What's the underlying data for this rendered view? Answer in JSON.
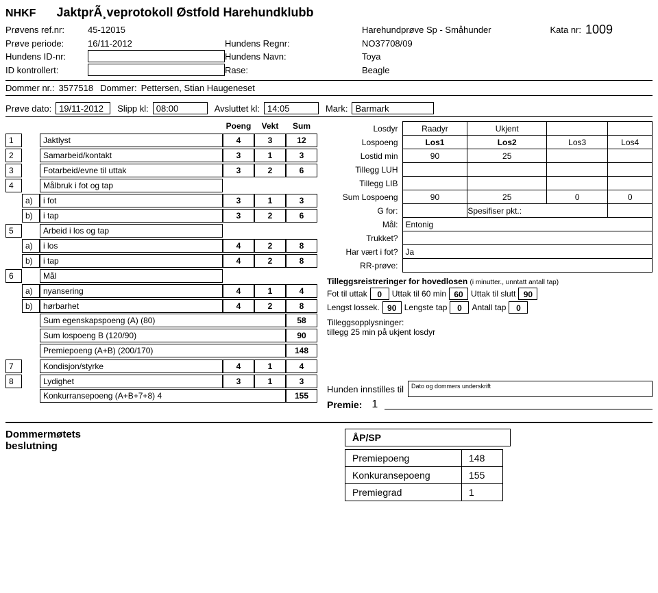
{
  "header": {
    "org": "NHKF",
    "title": "JaktprÃ¸veprotokoll Østfold Harehundklubb",
    "provens_ref_lbl": "Prøvens ref.nr:",
    "provens_ref": "45-12015",
    "prove_type": "Harehundprøve Sp - Småhunder",
    "kata_lbl": "Kata nr:",
    "kata_nr": "1009",
    "prove_periode_lbl": "Prøve periode:",
    "prove_periode": "16/11-2012",
    "hundens_regnr_lbl": "Hundens Regnr:",
    "hundens_regnr": "NO37708/09",
    "hundens_id_lbl": "Hundens ID-nr:",
    "hundens_id": "",
    "hundens_navn_lbl": "Hundens Navn:",
    "hundens_navn": "Toya",
    "id_kontrollert_lbl": "ID kontrollert:",
    "id_kontrollert": "",
    "rase_lbl": "Rase:",
    "rase": "Beagle"
  },
  "dommer": {
    "dommer_nr_lbl": "Dommer nr.:",
    "dommer_nr": "3577518",
    "dommer_lbl": "Dommer:",
    "dommer_name": "Pettersen, Stian Haugeneset",
    "prove_dato_lbl": "Prøve dato:",
    "prove_dato": "19/11-2012",
    "slipp_lbl": "Slipp kl:",
    "slipp": "08:00",
    "avsluttet_lbl": "Avsluttet kl:",
    "avsluttet": "14:05",
    "mark_lbl": "Mark:",
    "mark": "Barmark"
  },
  "score": {
    "hdr_poeng": "Poeng",
    "hdr_vekt": "Vekt",
    "hdr_sum": "Sum",
    "rows": [
      {
        "n": "1",
        "lbl": "Jaktlyst",
        "p": "4",
        "v": "3",
        "s": "12"
      },
      {
        "n": "2",
        "lbl": "Samarbeid/kontakt",
        "p": "3",
        "v": "1",
        "s": "3"
      },
      {
        "n": "3",
        "lbl": "Fotarbeid/evne til uttak",
        "p": "3",
        "v": "2",
        "s": "6"
      },
      {
        "n": "4",
        "lbl": "Målbruk i fot og tap"
      },
      {
        "sub": "a)",
        "lbl": "i fot",
        "p": "3",
        "v": "1",
        "s": "3"
      },
      {
        "sub": "b)",
        "lbl": "i tap",
        "p": "3",
        "v": "2",
        "s": "6"
      },
      {
        "n": "5",
        "lbl": "Arbeid i los og tap"
      },
      {
        "sub": "a)",
        "lbl": "i los",
        "p": "4",
        "v": "2",
        "s": "8"
      },
      {
        "sub": "b)",
        "lbl": "i tap",
        "p": "4",
        "v": "2",
        "s": "8"
      },
      {
        "n": "6",
        "lbl": "Mål"
      },
      {
        "sub": "a)",
        "lbl": "nyansering",
        "p": "4",
        "v": "1",
        "s": "4"
      },
      {
        "sub": "b)",
        "lbl": "hørbarhet",
        "p": "4",
        "v": "2",
        "s": "8"
      }
    ],
    "sumA_lbl": "Sum egenskapspoeng (A) (80)",
    "sumA": "58",
    "sumB_lbl": "Sum lospoeng B (120/90)",
    "sumB": "90",
    "premie_lbl": "Premiepoeng (A+B) (200/170)",
    "premie": "148",
    "r7": {
      "n": "7",
      "lbl": "Kondisjon/styrke",
      "p": "4",
      "v": "1",
      "s": "4"
    },
    "r8": {
      "n": "8",
      "lbl": "Lydighet",
      "p": "3",
      "v": "1",
      "s": "3"
    },
    "konk_lbl": "Konkurransepoeng (A+B+7+8) 4",
    "konk": "155"
  },
  "los": {
    "losdyr_lbl": "Losdyr",
    "raadyr": "Raadyr",
    "ukjent": "Ukjent",
    "lospoeng_lbl": "Lospoeng",
    "los1": "Los1",
    "los2": "Los2",
    "los3": "Los3",
    "los4": "Los4",
    "lostid_lbl": "Lostid min",
    "lostid1": "90",
    "lostid2": "25",
    "tillegg_luh_lbl": "Tillegg LUH",
    "tillegg_lib_lbl": "Tillegg LIB",
    "sum_lospoeng_lbl": "Sum Lospoeng",
    "sum1": "90",
    "sum2": "25",
    "sum3": "0",
    "sum4": "0",
    "gfor_lbl": "G for:",
    "spes_lbl": "Spesifiser pkt.:",
    "mal_lbl": "Mål:",
    "mal_val": "Entonig",
    "trukket_lbl": "Trukket?",
    "harvart_lbl": "Har vært i fot?",
    "harvart_val": "Ja",
    "rr_lbl": "RR-prøve:"
  },
  "tillegg": {
    "title": "Tilleggsreistreringer for hovedlosen",
    "title_sub": "(i minutter., unntatt antall tap)",
    "fot_lbl": "Fot til uttak",
    "fot_val": "0",
    "u60_lbl": "Uttak til 60 min",
    "u60_val": "60",
    "uslutt_lbl": "Uttak til slutt",
    "uslutt_val": "90",
    "lengst_lbl": "Lengst lossek.",
    "lengst_val": "90",
    "lengste_tap_lbl": "Lengste tap",
    "lengste_tap_val": "0",
    "antall_lbl": "Antall tap",
    "antall_val": "0"
  },
  "opplys": {
    "lbl": "Tilleggsopplysninger:",
    "text": "tillegg 25 min på ukjent losdyr"
  },
  "innstilles": {
    "lbl": "Hunden innstilles til",
    "box_text": "Dato og dommers underskrift",
    "premie_lbl": "Premie:",
    "premie_val": "1"
  },
  "bottom": {
    "dommer_lbl": "Dommermøtets beslutning",
    "apsp": "ÅP/SP",
    "rows": [
      {
        "lbl": "Premiepoeng",
        "val": "148"
      },
      {
        "lbl": "Konkuransepoeng",
        "val": "155"
      },
      {
        "lbl": "Premiegrad",
        "val": "1"
      }
    ]
  }
}
